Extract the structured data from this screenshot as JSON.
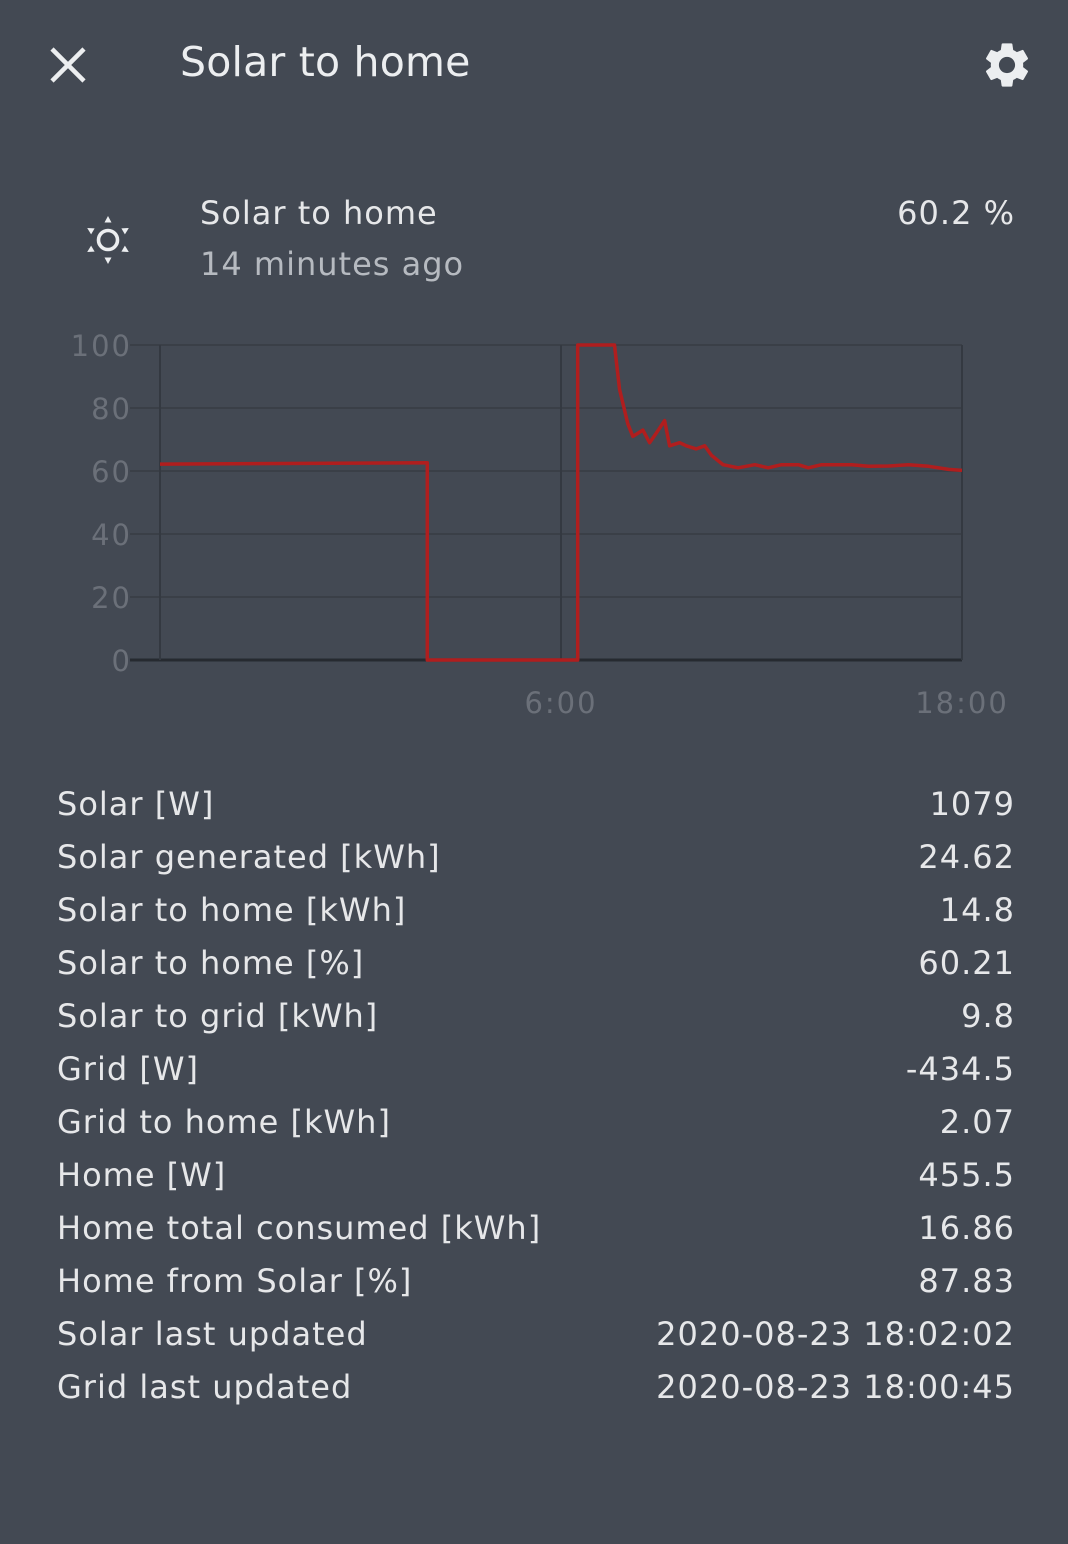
{
  "header": {
    "title": "Solar to home",
    "close_icon": "close-icon",
    "settings_icon": "gear-icon"
  },
  "entity": {
    "icon": "weather-sunny-icon",
    "name": "Solar to home",
    "last_changed": "14 minutes ago",
    "state": "60.2 %"
  },
  "chart_data": {
    "type": "line",
    "ylim": [
      0,
      100
    ],
    "yticks": [
      "0",
      "20",
      "40",
      "60",
      "80",
      "100"
    ],
    "xticks": [
      "6:00",
      "18:00"
    ],
    "line_color": "#b01e1e",
    "grid": true,
    "series": [
      {
        "values": [
          [
            -6.0,
            62.2
          ],
          [
            2.0,
            62.6
          ],
          [
            2.0,
            0
          ],
          [
            6.5,
            0
          ],
          [
            6.5,
            100
          ],
          [
            7.6,
            100
          ],
          [
            7.75,
            86
          ],
          [
            8.0,
            75
          ],
          [
            8.15,
            71
          ],
          [
            8.45,
            73
          ],
          [
            8.65,
            69
          ],
          [
            8.85,
            72
          ],
          [
            9.1,
            76
          ],
          [
            9.25,
            68
          ],
          [
            9.55,
            69
          ],
          [
            9.75,
            68
          ],
          [
            10.05,
            67
          ],
          [
            10.3,
            68
          ],
          [
            10.5,
            65
          ],
          [
            10.85,
            62
          ],
          [
            11.3,
            61
          ],
          [
            11.8,
            62
          ],
          [
            12.2,
            61
          ],
          [
            12.6,
            62
          ],
          [
            13.1,
            62
          ],
          [
            13.4,
            61
          ],
          [
            13.8,
            62
          ],
          [
            14.2,
            62
          ],
          [
            14.7,
            62
          ],
          [
            15.2,
            61.5
          ],
          [
            15.8,
            61.6
          ],
          [
            16.4,
            62
          ],
          [
            17.0,
            61.5
          ],
          [
            17.6,
            60.5
          ],
          [
            18.0,
            60.2
          ]
        ]
      }
    ]
  },
  "attributes": [
    {
      "label": "Solar [W]",
      "value": "1079"
    },
    {
      "label": "Solar generated [kWh]",
      "value": "24.62"
    },
    {
      "label": "Solar to home [kWh]",
      "value": "14.8"
    },
    {
      "label": "Solar to home [%]",
      "value": "60.21"
    },
    {
      "label": "Solar to grid [kWh]",
      "value": "9.8"
    },
    {
      "label": "Grid [W]",
      "value": "-434.5"
    },
    {
      "label": "Grid to home [kWh]",
      "value": "2.07"
    },
    {
      "label": "Home [W]",
      "value": "455.5"
    },
    {
      "label": "Home total consumed [kWh]",
      "value": "16.86"
    },
    {
      "label": "Home from Solar [%]",
      "value": "87.83"
    },
    {
      "label": "Solar last updated",
      "value": "2020-08-23 18:02:02"
    },
    {
      "label": "Grid last updated",
      "value": "2020-08-23 18:00:45"
    }
  ]
}
